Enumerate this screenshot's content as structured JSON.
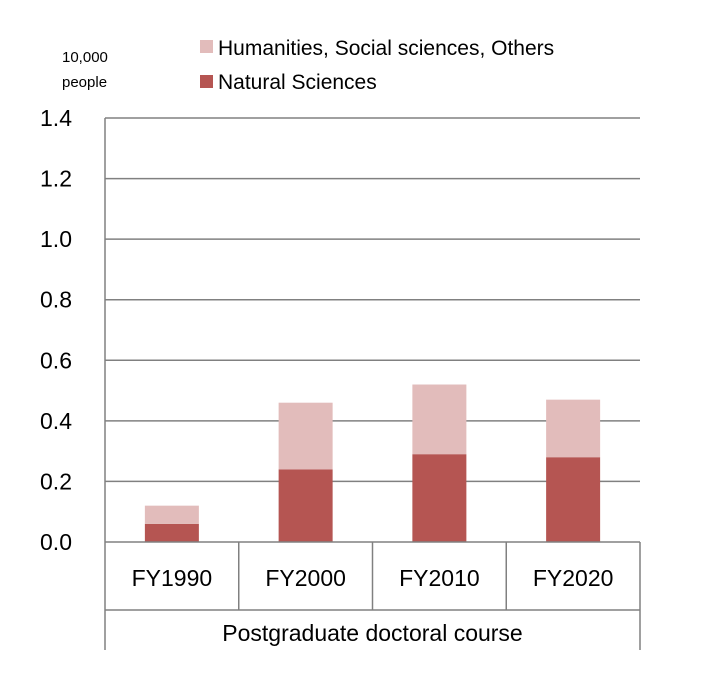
{
  "chart_data": {
    "type": "bar",
    "stacked": true,
    "unit_label": [
      "10,000",
      "people"
    ],
    "categories": [
      "FY1990",
      "FY2000",
      "FY2010",
      "FY2020"
    ],
    "group_label": "Postgraduate doctoral course",
    "series": [
      {
        "name": "Natural Sciences",
        "values": [
          0.06,
          0.24,
          0.29,
          0.28
        ]
      },
      {
        "name": "Humanities, Social sciences, Others",
        "values": [
          0.06,
          0.22,
          0.23,
          0.19
        ]
      }
    ],
    "colors": {
      "Natural Sciences": "#b55552",
      "Humanities, Social sciences, Others": "#e2bcbb"
    },
    "ylim": [
      0,
      1.4
    ],
    "yticks": [
      "0.0",
      "0.2",
      "0.4",
      "0.6",
      "0.8",
      "1.0",
      "1.2",
      "1.4"
    ],
    "grid": true,
    "legend_position": "top"
  }
}
